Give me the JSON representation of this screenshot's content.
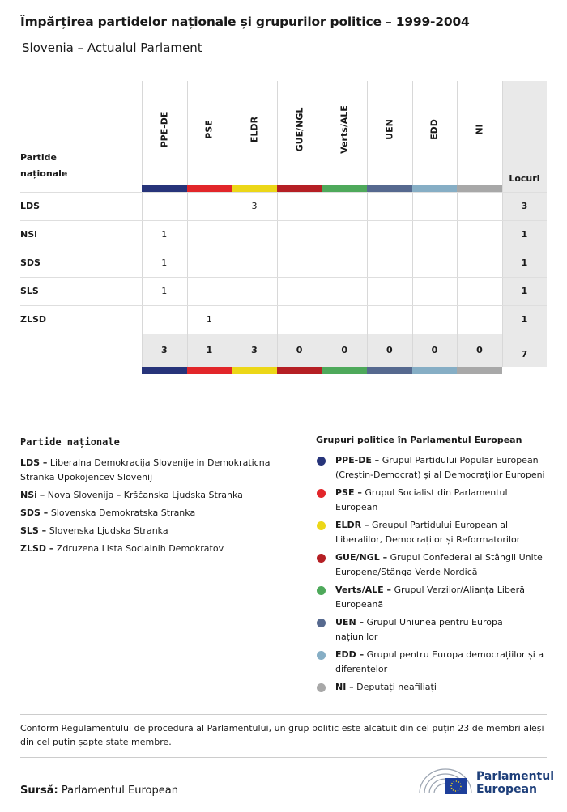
{
  "header": {
    "title": "Împărțirea partidelor naționale și grupurilor politice – 1999-2004",
    "subtitle": "Slovenia – Actualul Parlament"
  },
  "table": {
    "corner": "Partide naționale",
    "total_header": "Locuri",
    "groups": [
      {
        "label": "PPE-DE",
        "color": "#27347a"
      },
      {
        "label": "PSE",
        "color": "#e2262a"
      },
      {
        "label": "ELDR",
        "color": "#ecd718"
      },
      {
        "label": "GUE/NGL",
        "color": "#b51f24"
      },
      {
        "label": "Verts/ALE",
        "color": "#4ea95b"
      },
      {
        "label": "UEN",
        "color": "#56698f"
      },
      {
        "label": "EDD",
        "color": "#86aec5"
      },
      {
        "label": "NI",
        "color": "#a8a8a8"
      }
    ],
    "rows": [
      {
        "party": "LDS",
        "cells": [
          null,
          null,
          3,
          null,
          null,
          null,
          null,
          null
        ],
        "total": 3
      },
      {
        "party": "NSi",
        "cells": [
          1,
          null,
          null,
          null,
          null,
          null,
          null,
          null
        ],
        "total": 1
      },
      {
        "party": "SDS",
        "cells": [
          1,
          null,
          null,
          null,
          null,
          null,
          null,
          null
        ],
        "total": 1
      },
      {
        "party": "SLS",
        "cells": [
          1,
          null,
          null,
          null,
          null,
          null,
          null,
          null
        ],
        "total": 1
      },
      {
        "party": "ZLSD",
        "cells": [
          null,
          1,
          null,
          null,
          null,
          null,
          null,
          null
        ],
        "total": 1
      }
    ],
    "totals": [
      3,
      1,
      3,
      0,
      0,
      0,
      0,
      0
    ],
    "grand_total": 7
  },
  "parties_legend": {
    "title": "Partide naționale",
    "items": [
      {
        "abbr": "LDS –",
        "name": "Liberalna Demokracija Slovenije in Demokraticna Stranka Upokojencev Slovenij"
      },
      {
        "abbr": "NSi –",
        "name": "Nova Slovenija – Krščanska Ljudska Stranka"
      },
      {
        "abbr": "SDS –",
        "name": "Slovenska Demokratska Stranka"
      },
      {
        "abbr": "SLS –",
        "name": "Slovenska Ljudska Stranka"
      },
      {
        "abbr": "ZLSD –",
        "name": "Zdruzena Lista Socialnih Demokratov"
      }
    ]
  },
  "groups_legend": {
    "title": "Grupuri politice în Parlamentul European",
    "items": [
      {
        "abbr": "PPE-DE –",
        "name": "Grupul Partidului Popular European (Creștin-Democrat) și al Democraților Europeni"
      },
      {
        "abbr": "PSE –",
        "name": "Grupul Socialist din Parlamentul European"
      },
      {
        "abbr": "ELDR –",
        "name": "Greupul Partidului European al Liberalilor, Democraților și Reformatorilor"
      },
      {
        "abbr": "GUE/NGL –",
        "name": "Grupul Confederal al Stângii Unite Europene/Stânga Verde Nordică"
      },
      {
        "abbr": "Verts/ALE –",
        "name": "Grupul Verzilor/Alianța Liberă Europeană"
      },
      {
        "abbr": "UEN –",
        "name": "Grupul Uniunea pentru Europa națiunilor"
      },
      {
        "abbr": "EDD –",
        "name": "Grupul pentru Europa democrațiilor și a diferențelor"
      },
      {
        "abbr": "NI –",
        "name": "Deputați neafiliați"
      }
    ]
  },
  "note": "Conform Regulamentului de procedură al Parlamentului, un grup politic este alcătuit din cel puțin 23 de membri aleși din cel puțin șapte state membre.",
  "source": {
    "label": "Sursă:",
    "text": "Parlamentul European"
  },
  "logo": {
    "line1": "Parlamentul",
    "line2": "European"
  }
}
